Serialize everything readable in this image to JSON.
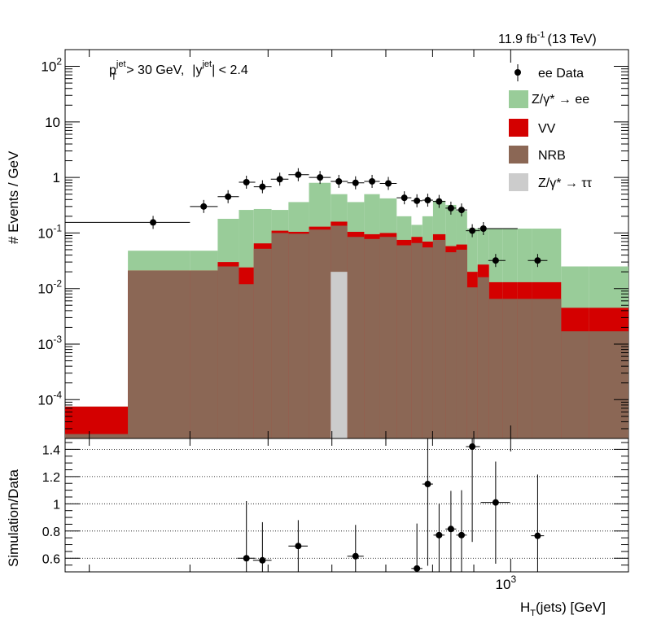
{
  "header": {
    "lumi_label": "11.9 fb",
    "lumi_exp": "-1",
    "lumi_energy": "(13 TeV)"
  },
  "cuts": {
    "pt_sym": "p",
    "pt_sub": "T",
    "pt_sup": "jet",
    "pt_cond": "> 30 GeV,",
    "y_sym": "|y",
    "y_sup": "jet",
    "y_cond": "| < 2.4"
  },
  "colors": {
    "dy": "#99cc99",
    "vv": "#d40000",
    "nrb": "#8b6755",
    "tautau": "#cccccc",
    "data": "#000000"
  },
  "chart_data": [
    {
      "type": "bar",
      "stacked": true,
      "log_y": true,
      "log_x": true,
      "ylabel": "# Events / GeV",
      "xlabel": "",
      "ylim": [
        2e-05,
        200
      ],
      "xlim": [
        280,
        1400
      ],
      "y_ticks": [
        {
          "v": 0.0001,
          "b": "10",
          "e": "-4"
        },
        {
          "v": 0.001,
          "b": "10",
          "e": "-3"
        },
        {
          "v": 0.01,
          "b": "10",
          "e": "-2"
        },
        {
          "v": 0.1,
          "b": "10",
          "e": "-1"
        },
        {
          "v": 1,
          "b": "1",
          "e": ""
        },
        {
          "v": 10,
          "b": "10",
          "e": ""
        },
        {
          "v": 100,
          "b": "10",
          "e": "2"
        }
      ],
      "bin_edges": [
        280,
        335,
        400,
        433,
        460,
        480,
        505,
        530,
        562,
        598,
        627,
        658,
        688,
        722,
        753,
        777,
        801,
        830,
        856,
        883,
        910,
        940,
        978,
        1020,
        1063,
        1155,
        1250,
        1400
      ],
      "series": [
        {
          "name": "NRB",
          "values": [
            2.4e-05,
            0.021,
            0.021,
            0.025,
            0.012,
            0.052,
            0.1,
            0.097,
            0.115,
            0.135,
            0.085,
            0.078,
            0.085,
            0.06,
            0.066,
            0.055,
            0.075,
            0.045,
            0.05,
            0.0105,
            0.016,
            0.0065,
            0.0065,
            0.0065,
            0.0065,
            0.0017,
            0.0017
          ]
        },
        {
          "name": "VV",
          "values": [
            7.5e-05,
            0.021,
            0.021,
            0.03,
            0.024,
            0.065,
            0.11,
            0.105,
            0.13,
            0.16,
            0.105,
            0.095,
            0.1,
            0.075,
            0.085,
            0.07,
            0.095,
            0.058,
            0.062,
            0.02,
            0.027,
            0.013,
            0.013,
            0.013,
            0.013,
            0.0045,
            0.0045
          ]
        },
        {
          "name": "Z/γ* → ee",
          "values": [
            7.5e-05,
            0.048,
            0.048,
            0.18,
            0.26,
            0.27,
            0.26,
            0.36,
            0.8,
            0.5,
            0.36,
            0.5,
            0.42,
            0.2,
            0.14,
            0.2,
            0.38,
            0.32,
            0.25,
            0.12,
            0.12,
            0.12,
            0.12,
            0.12,
            0.12,
            0.025,
            0.025
          ]
        },
        {
          "name": "Z/γ* → ττ",
          "values": [
            {
              "x0": 598,
              "x1": 627,
              "v": 0.02
            }
          ]
        }
      ],
      "points": [
        {
          "name": "ee Data",
          "x": [
            360,
            416,
            446,
            470,
            492,
            517,
            545,
            580,
            612,
            642,
            673,
            705,
            738,
            765,
            789,
            815,
            843,
            869,
            896,
            925,
            958,
            1080
          ],
          "y": [
            0.155,
            0.3,
            0.45,
            0.82,
            0.68,
            0.93,
            1.12,
            1.0,
            0.85,
            0.8,
            0.85,
            0.78,
            0.43,
            0.38,
            0.39,
            0.37,
            0.28,
            0.26,
            0.11,
            0.12,
            0.032,
            0.032
          ],
          "xerr_lo": [
            80,
            16,
            13,
            10,
            12,
            13,
            15,
            18,
            14,
            15,
            15,
            17,
            16,
            12,
            12,
            14,
            13,
            13,
            16,
            15,
            20,
            0
          ],
          "xerr_hi": [
            40,
            17,
            14,
            12,
            13,
            13,
            17,
            18,
            16,
            16,
            15,
            17,
            15,
            12,
            12,
            15,
            13,
            14,
            20,
            95,
            0,
            0
          ]
        }
      ],
      "legend": {
        "placement": "top-right",
        "entries": [
          "ee Data",
          "Z/γ* → ee",
          "VV",
          "NRB",
          "Z/γ* → ττ"
        ]
      }
    },
    {
      "type": "scatter",
      "log_x": true,
      "ylabel": "Simulation/Data",
      "xlabel": "H",
      "xlabel_sub": "T",
      "xlabel_rest": "(jets) [GeV]",
      "ylim": [
        0.5,
        1.48
      ],
      "xlim": [
        280,
        1400
      ],
      "y_ticks": [
        0.6,
        0.8,
        1,
        1.2,
        1.4
      ],
      "x_ticks": [
        {
          "v": 1000,
          "b": "10",
          "e": "3"
        }
      ],
      "grid": true,
      "points": [
        {
          "x": 470,
          "y": 0.6,
          "elo": 0.6,
          "ehi": 0.42,
          "xlo": 12,
          "xhi": 12
        },
        {
          "x": 492,
          "y": 0.585,
          "elo": 0.55,
          "ehi": 0.28,
          "xlo": 13,
          "xhi": 13
        },
        {
          "x": 545,
          "y": 0.69,
          "elo": 0.3,
          "ehi": 0.19,
          "xlo": 15,
          "xhi": 15
        },
        {
          "x": 642,
          "y": 0.615,
          "elo": 0.4,
          "ehi": 0.23,
          "xlo": 15,
          "xhi": 15
        },
        {
          "x": 765,
          "y": 0.525,
          "elo": 0.4,
          "ehi": 0.33,
          "xlo": 12,
          "xhi": 12
        },
        {
          "x": 789,
          "y": 1.145,
          "elo": 0.6,
          "ehi": 0.4,
          "xlo": 12,
          "xhi": 12
        },
        {
          "x": 815,
          "y": 0.77,
          "elo": 0.4,
          "ehi": 0.23,
          "xlo": 13,
          "xhi": 13
        },
        {
          "x": 843,
          "y": 0.815,
          "elo": 0.35,
          "ehi": 0.28,
          "xlo": 13,
          "xhi": 13
        },
        {
          "x": 869,
          "y": 0.77,
          "elo": 0.4,
          "ehi": 0.33,
          "xlo": 13,
          "xhi": 13
        },
        {
          "x": 896,
          "y": 1.42,
          "elo": 0.7,
          "ehi": 0.3,
          "xlo": 16,
          "xhi": 20
        },
        {
          "x": 958,
          "y": 1.01,
          "elo": 0.45,
          "ehi": 0.3,
          "xlo": 40,
          "xhi": 40
        },
        {
          "x": 1080,
          "y": 0.765,
          "elo": 0.45,
          "ehi": 0.45,
          "xlo": 20,
          "xhi": 20
        }
      ]
    }
  ]
}
